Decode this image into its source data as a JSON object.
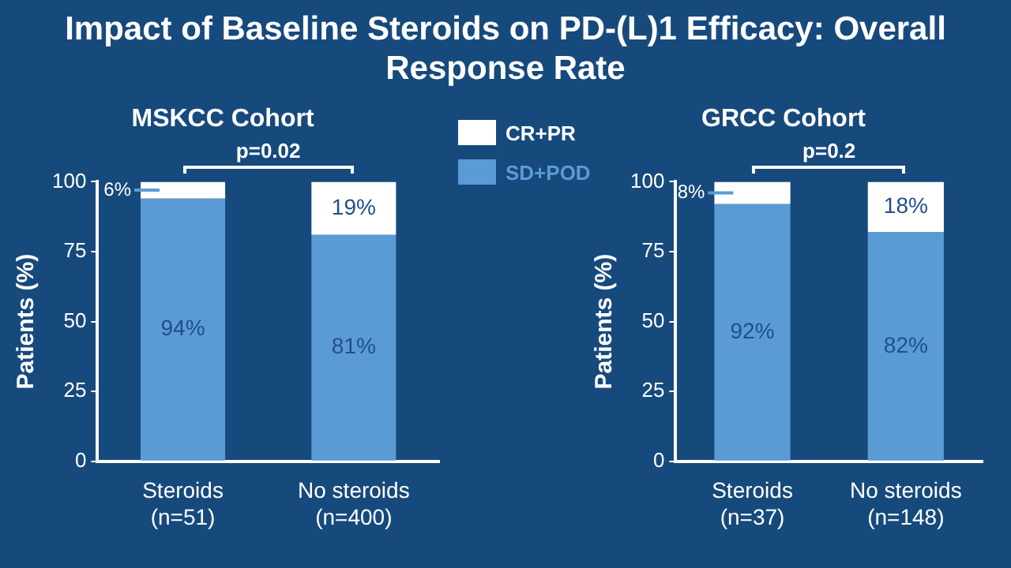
{
  "chart_data": [
    {
      "type": "bar",
      "title": "Impact of Baseline Steroids on PD-(L)1 Efficacy: Overall Response Rate",
      "subtitle": "MSKCC Cohort",
      "ylabel": "Patients (%)",
      "categories": [
        "Steroids\n(n=51)",
        "No steroids\n(n=400)"
      ],
      "stacked": true,
      "ylim": [
        0,
        100
      ],
      "yticks": [
        0,
        25,
        50,
        75,
        100
      ],
      "grid": false,
      "legend": "right",
      "annotations": [
        "p=0.02"
      ],
      "series": [
        {
          "name": "SD+POD",
          "color": "#5b9bd5",
          "values": [
            94,
            81
          ],
          "value_labels": [
            "94%",
            "81%"
          ]
        },
        {
          "name": "CR+PR",
          "color": "#ffffff",
          "values": [
            6,
            19
          ],
          "value_labels": [
            "6%",
            "19%"
          ]
        }
      ]
    },
    {
      "type": "bar",
      "title": "GRCC Cohort",
      "ylabel": "Patients (%)",
      "categories": [
        "Steroids\n(n=37)",
        "No steroids\n(n=148)"
      ],
      "stacked": true,
      "ylim": [
        0,
        100
      ],
      "yticks": [
        0,
        25,
        50,
        75,
        100
      ],
      "grid": false,
      "legend": false,
      "annotations": [
        "p=0.2"
      ],
      "series": [
        {
          "color": "#5b9bd5",
          "values": [
            92,
            82
          ],
          "value_labels": [
            "92%",
            "82%"
          ]
        },
        {
          "color": "#ffffff",
          "values": [
            8,
            18
          ],
          "value_labels": [
            "8%",
            "18%"
          ]
        }
      ]
    }
  ]
}
